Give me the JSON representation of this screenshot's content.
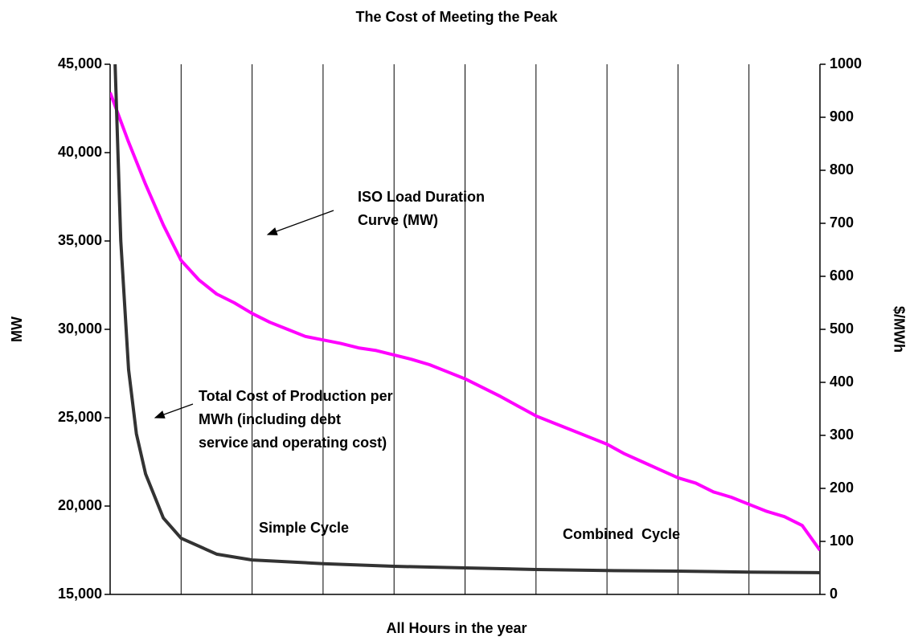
{
  "chart_data": {
    "type": "line",
    "title": "The Cost of Meeting the Peak",
    "x_label": "All Hours in the year",
    "y_label": "MW",
    "y2_label": "$/MWh",
    "xlim": [
      0,
      100
    ],
    "xticks": [
      0,
      10,
      20,
      30,
      40,
      50,
      60,
      70,
      80,
      90,
      100
    ],
    "ylim": [
      15000,
      45000
    ],
    "yticks": [
      {
        "value": 15000,
        "label": "15,000"
      },
      {
        "value": 20000,
        "label": "20,000"
      },
      {
        "value": 25000,
        "label": "25,000"
      },
      {
        "value": 30000,
        "label": "30,000"
      },
      {
        "value": 35000,
        "label": "35,000"
      },
      {
        "value": 40000,
        "label": "40,000"
      },
      {
        "value": 45000,
        "label": "45,000"
      }
    ],
    "y2lim": [
      0,
      1000
    ],
    "y2ticks": [
      0,
      100,
      200,
      300,
      400,
      500,
      600,
      700,
      800,
      900,
      1000
    ],
    "ytick_color": "#ff00ff",
    "grid": true,
    "series": [
      {
        "name": "ISO Load Duration Curve (MW)",
        "color": "#ff00ff",
        "x": [
          0,
          2.5,
          5,
          7.5,
          10,
          12.5,
          15,
          17.5,
          20,
          22.5,
          25,
          27.5,
          30,
          32.5,
          35,
          37.5,
          40,
          42.5,
          45,
          47.5,
          50,
          52.5,
          55,
          57.5,
          60,
          62.5,
          65,
          67.5,
          70,
          72.5,
          75,
          77.5,
          80,
          82.5,
          85,
          87.5,
          90,
          92.5,
          95,
          97.5,
          100
        ],
        "values": [
          43400,
          40700,
          38200,
          35900,
          33900,
          32800,
          32000,
          31500,
          30900,
          30400,
          30000,
          29600,
          29400,
          29200,
          28950,
          28800,
          28550,
          28300,
          28000,
          27600,
          27200,
          26700,
          26200,
          25650,
          25100,
          24700,
          24300,
          23900,
          23500,
          22950,
          22500,
          22050,
          21600,
          21300,
          20800,
          20500,
          20100,
          19700,
          19400,
          18900,
          17500
        ]
      },
      {
        "name": "Total Cost of Production per MWh (including debt service and operating cost)",
        "color": "#333333",
        "axis": "y2",
        "x": [
          0.7,
          1.5,
          2.6,
          3.7,
          5,
          7.5,
          10,
          15,
          20,
          30,
          40,
          50,
          60,
          70,
          80,
          90,
          100
        ],
        "values": [
          1000,
          667,
          424,
          303,
          227,
          144,
          106,
          76,
          65,
          58,
          53,
          50,
          47,
          45,
          44,
          42,
          41
        ]
      }
    ],
    "annotations": [
      {
        "lines": [
          "ISO Load Duration",
          "Curve (MW)"
        ]
      },
      {
        "lines": [
          "Total Cost of Production per",
          "MWh (including debt",
          "service and operating cost)"
        ]
      },
      {
        "lines": [
          "Simple Cycle"
        ]
      },
      {
        "lines": [
          "Combined  Cycle"
        ]
      }
    ]
  }
}
